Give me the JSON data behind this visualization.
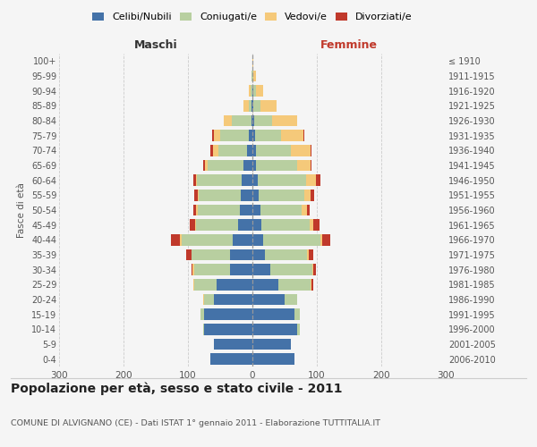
{
  "age_groups": [
    "0-4",
    "5-9",
    "10-14",
    "15-19",
    "20-24",
    "25-29",
    "30-34",
    "35-39",
    "40-44",
    "45-49",
    "50-54",
    "55-59",
    "60-64",
    "65-69",
    "70-74",
    "75-79",
    "80-84",
    "85-89",
    "90-94",
    "95-99",
    "100+"
  ],
  "birth_years": [
    "2006-2010",
    "2001-2005",
    "1996-2000",
    "1991-1995",
    "1986-1990",
    "1981-1985",
    "1976-1980",
    "1971-1975",
    "1966-1970",
    "1961-1965",
    "1956-1960",
    "1951-1955",
    "1946-1950",
    "1941-1945",
    "1936-1940",
    "1931-1935",
    "1926-1930",
    "1921-1925",
    "1916-1920",
    "1911-1915",
    "≤ 1910"
  ],
  "male": {
    "celibi": [
      65,
      60,
      75,
      75,
      60,
      55,
      35,
      35,
      30,
      22,
      20,
      18,
      16,
      14,
      8,
      5,
      2,
      1,
      0,
      0,
      0
    ],
    "coniugati": [
      0,
      0,
      2,
      5,
      15,
      35,
      55,
      60,
      80,
      65,
      65,
      65,
      70,
      55,
      45,
      45,
      30,
      5,
      3,
      1,
      0
    ],
    "vedovi": [
      0,
      0,
      0,
      0,
      1,
      2,
      3,
      0,
      2,
      2,
      2,
      2,
      2,
      5,
      8,
      10,
      12,
      8,
      2,
      1,
      0
    ],
    "divorziati": [
      0,
      0,
      0,
      0,
      0,
      0,
      2,
      8,
      14,
      8,
      4,
      5,
      4,
      2,
      4,
      3,
      0,
      0,
      0,
      0,
      0
    ]
  },
  "female": {
    "nubili": [
      65,
      60,
      70,
      65,
      50,
      40,
      28,
      20,
      16,
      14,
      12,
      10,
      8,
      5,
      5,
      4,
      3,
      2,
      2,
      0,
      0
    ],
    "coniugate": [
      0,
      0,
      3,
      8,
      20,
      50,
      65,
      65,
      90,
      75,
      65,
      70,
      75,
      65,
      55,
      40,
      28,
      10,
      4,
      2,
      0
    ],
    "vedove": [
      0,
      0,
      0,
      0,
      0,
      2,
      2,
      2,
      3,
      5,
      8,
      10,
      15,
      20,
      30,
      35,
      38,
      25,
      10,
      4,
      1
    ],
    "divorziate": [
      0,
      0,
      0,
      0,
      0,
      2,
      3,
      8,
      12,
      10,
      4,
      6,
      8,
      2,
      2,
      2,
      0,
      0,
      0,
      0,
      0
    ]
  },
  "colors": {
    "celibi": "#4472a8",
    "coniugati": "#b8cfa0",
    "vedovi": "#f5c97a",
    "divorziati": "#c0392b"
  },
  "title": "Popolazione per età, sesso e stato civile - 2011",
  "subtitle": "COMUNE DI ALVIGNANO (CE) - Dati ISTAT 1° gennaio 2011 - Elaborazione TUTTITALIA.IT",
  "xlabel_left": "Maschi",
  "xlabel_right": "Femmine",
  "ylabel_left": "Fasce di età",
  "xlim": 300,
  "background_color": "#f5f5f5",
  "grid_color": "#cccccc"
}
